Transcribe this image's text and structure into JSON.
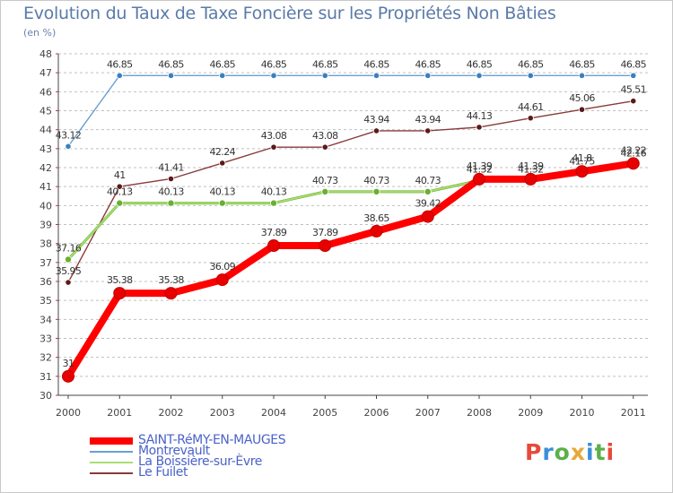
{
  "header": {
    "title": "Evolution du Taux de Taxe Foncière sur les Propriétés Non Bâties",
    "subtitle": "(en %)"
  },
  "logo": {
    "text": "Proxiti",
    "colors": [
      "#e8493a",
      "#3a8fd8",
      "#5bb04a",
      "#e8a93a",
      "#3a8fd8",
      "#5bb04a",
      "#e8493a"
    ]
  },
  "chart_data": {
    "type": "line",
    "x": [
      "2000",
      "2001",
      "2002",
      "2003",
      "2004",
      "2005",
      "2006",
      "2007",
      "2008",
      "2009",
      "2010",
      "2011"
    ],
    "ylim": [
      30,
      48
    ],
    "yticks": [
      "30",
      "31",
      "32",
      "33",
      "34",
      "35",
      "36",
      "37",
      "38",
      "39",
      "40",
      "41",
      "42",
      "43",
      "44",
      "45",
      "46",
      "47",
      "48"
    ],
    "grid": "horizontal dashed",
    "legend_position": "bottom-left",
    "series": [
      {
        "name": "Montrevault",
        "color": "#6aa0d0",
        "marker": "#3a7fc0",
        "values": [
          43.12,
          46.85,
          46.85,
          46.85,
          46.85,
          46.85,
          46.85,
          46.85,
          46.85,
          46.85,
          46.85,
          46.85
        ],
        "labels": [
          "43.12",
          "46.85",
          "46.85",
          "46.85",
          "46.85",
          "46.85",
          "46.85",
          "46.85",
          "46.85",
          "46.85",
          "46.85",
          "46.85"
        ]
      },
      {
        "name": "Le Fuilet",
        "color": "#8a3a3a",
        "marker": "#5a1a1a",
        "values": [
          35.95,
          41.0,
          41.41,
          42.24,
          43.08,
          43.08,
          43.94,
          43.94,
          44.13,
          44.61,
          45.06,
          45.51
        ],
        "labels": [
          "35.95",
          "41",
          "41.41",
          "42.24",
          "43.08",
          "43.08",
          "43.94",
          "43.94",
          "44.13",
          "44.61",
          "45.06",
          "45.51"
        ]
      },
      {
        "name": "La Boissière-sur-Èvre",
        "color": "#a8e070",
        "marker": "#6ab030",
        "values": [
          37.16,
          40.13,
          40.13,
          40.13,
          40.13,
          40.73,
          40.73,
          40.73,
          41.32,
          41.32,
          41.75,
          42.16
        ],
        "labels": [
          "37.16",
          "40.13",
          "40.13",
          "40.13",
          "40.13",
          "40.73",
          "40.73",
          "40.73",
          "41.32",
          "41.32",
          "41.75",
          "42.16"
        ]
      },
      {
        "name": "SAINT-RéMY-EN-MAUGES",
        "color": "#ff0000",
        "marker": "#e80000",
        "values": [
          31.0,
          35.38,
          35.38,
          36.09,
          37.89,
          37.89,
          38.65,
          39.42,
          41.39,
          41.39,
          41.8,
          42.22
        ],
        "labels": [
          "31",
          "35.38",
          "35.38",
          "36.09",
          "37.89",
          "37.89",
          "38.65",
          "39.42",
          "41.39",
          "41.39",
          "41.8",
          "42.22"
        ]
      }
    ],
    "legend": [
      "SAINT-RéMY-EN-MAUGES",
      "Montrevault",
      "La Boissière-sur-Èvre",
      "Le Fuilet"
    ]
  }
}
